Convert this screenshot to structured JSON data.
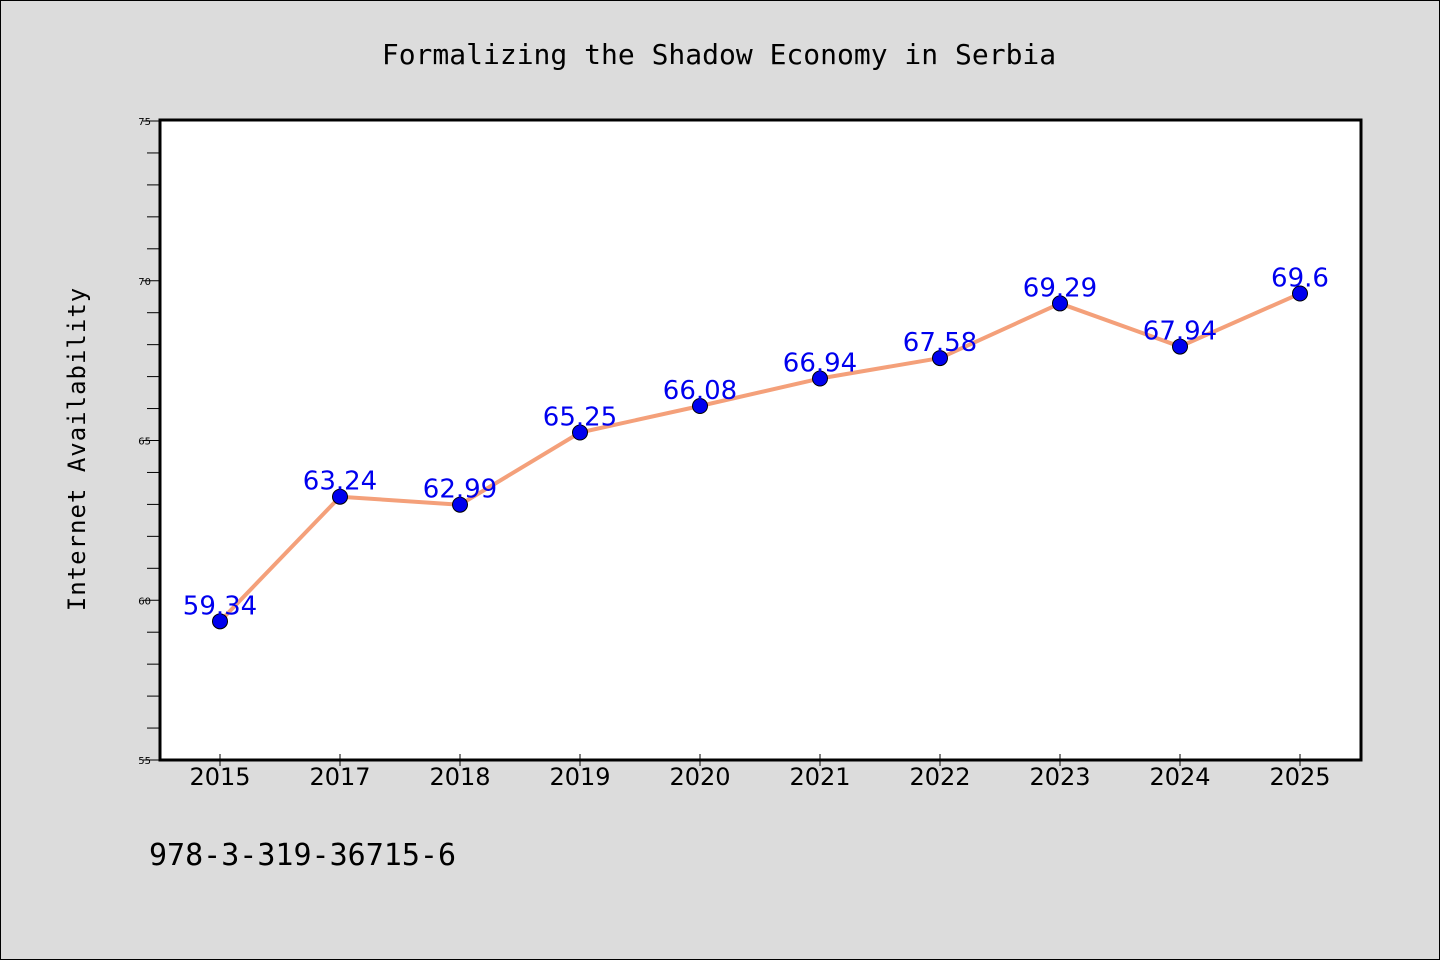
{
  "chart_data": {
    "type": "line",
    "title": "Formalizing the Shadow Economy in Serbia",
    "xlabel": "",
    "ylabel": "Internet Availability",
    "categories": [
      "2015",
      "2017",
      "2018",
      "2019",
      "2020",
      "2021",
      "2022",
      "2023",
      "2024",
      "2025"
    ],
    "series": [
      {
        "values": [
          59.34,
          63.24,
          62.99,
          65.25,
          66.08,
          66.94,
          67.58,
          69.29,
          67.94,
          69.6
        ],
        "labels": [
          "59.34",
          "63.24",
          "62.99",
          "65.25",
          "66.08",
          "66.94",
          "67.58",
          "69.29",
          "67.94",
          "69.6"
        ],
        "line_color": "#f4a07a",
        "marker_color": "#0000ee",
        "label_color": "#0000ee"
      }
    ],
    "ylim": [
      55,
      75
    ],
    "yticks": [
      "55",
      "60",
      "65",
      "70",
      "75"
    ],
    "grid": false,
    "legend": "none"
  },
  "footer": {
    "text": "978-3-319-36715-6"
  }
}
